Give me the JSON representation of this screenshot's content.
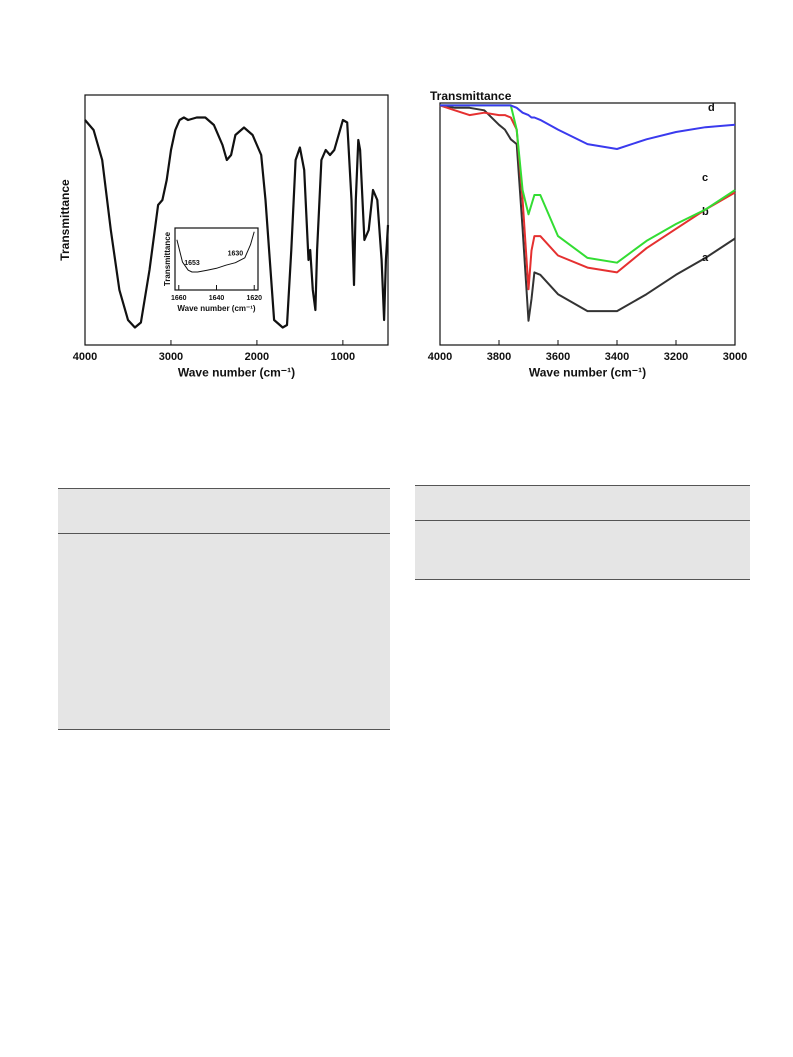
{
  "chart_data": [
    {
      "type": "line",
      "xlabel": "Wave number (cm⁻¹)",
      "ylabel": "Transmittance",
      "xlim": [
        4000,
        475
      ],
      "ylim": [
        0,
        100
      ],
      "xticks": [
        4000,
        3000,
        2000,
        1000
      ],
      "x": [
        4000,
        3900,
        3800,
        3700,
        3600,
        3500,
        3420,
        3350,
        3250,
        3150,
        3100,
        3050,
        3000,
        2950,
        2900,
        2850,
        2800,
        2700,
        2600,
        2500,
        2400,
        2350,
        2300,
        2250,
        2150,
        2050,
        2000,
        1950,
        1900,
        1850,
        1800,
        1700,
        1650,
        1600,
        1550,
        1500,
        1450,
        1400,
        1380,
        1350,
        1320,
        1300,
        1250,
        1200,
        1150,
        1100,
        1050,
        1000,
        950,
        900,
        870,
        850,
        820,
        800,
        750,
        700,
        650,
        600,
        550,
        520,
        500,
        475
      ],
      "series": [
        {
          "color": "#111111",
          "values": [
            90,
            86,
            74,
            46,
            22,
            10,
            7,
            9,
            30,
            56,
            58,
            66,
            78,
            86,
            90,
            91,
            90,
            91,
            91,
            88,
            80,
            74,
            76,
            84,
            87,
            84,
            80,
            76,
            58,
            34,
            10,
            7,
            8,
            38,
            74,
            79,
            70,
            34,
            38,
            22,
            14,
            38,
            74,
            78,
            76,
            78,
            84,
            90,
            89,
            58,
            24,
            58,
            82,
            78,
            42,
            46,
            62,
            58,
            34,
            10,
            34,
            48
          ]
        }
      ]
    },
    {
      "type": "line",
      "xlabel": "Wave number (cm⁻¹)",
      "ylabel": "Transmittance",
      "xlim": [
        1662,
        1618
      ],
      "ylim": [
        0,
        100
      ],
      "xticks": [
        1660,
        1640,
        1620
      ],
      "annotations": [
        {
          "text": "1653",
          "x": 1653
        },
        {
          "text": "1630",
          "x": 1630
        }
      ],
      "x": [
        1661,
        1658,
        1655,
        1653,
        1650,
        1645,
        1640,
        1635,
        1630,
        1625,
        1622,
        1620
      ],
      "series": [
        {
          "color": "#111111",
          "values": [
            81,
            45,
            32,
            29,
            29,
            32,
            35,
            40,
            44,
            52,
            73,
            94
          ]
        }
      ]
    },
    {
      "type": "line",
      "xlabel": "Wave number (cm⁻¹)",
      "ylabel": "Transmittance",
      "xlim": [
        4000,
        3000
      ],
      "ylim": [
        0,
        100
      ],
      "xticks": [
        4000,
        3800,
        3600,
        3400,
        3200,
        3000
      ],
      "x": [
        4000,
        3950,
        3900,
        3850,
        3800,
        3780,
        3760,
        3740,
        3720,
        3700,
        3690,
        3680,
        3660,
        3600,
        3500,
        3400,
        3300,
        3200,
        3100,
        3000
      ],
      "series": [
        {
          "name": "a",
          "color": "#333333",
          "values": [
            99,
            98,
            98,
            97,
            91,
            89,
            85,
            83,
            48,
            10,
            19,
            30,
            29,
            21,
            14,
            14,
            21,
            29,
            36,
            44
          ]
        },
        {
          "name": "b",
          "color": "#e53030",
          "values": [
            99,
            97,
            95,
            96,
            95,
            95,
            94,
            89,
            60,
            23,
            39,
            45,
            45,
            37,
            32,
            30,
            40,
            48,
            56,
            63
          ]
        },
        {
          "name": "c",
          "color": "#33dd33",
          "values": [
            99,
            99,
            99,
            99,
            99,
            99,
            99,
            89,
            64,
            54,
            58,
            62,
            62,
            45,
            36,
            34,
            43,
            50,
            56,
            64
          ]
        },
        {
          "name": "d",
          "color": "#3a3aee",
          "values": [
            99,
            99,
            99,
            99,
            99,
            99,
            99,
            98,
            96,
            95,
            94,
            94,
            93,
            89,
            83,
            81,
            85,
            88,
            90,
            91
          ]
        }
      ]
    }
  ]
}
